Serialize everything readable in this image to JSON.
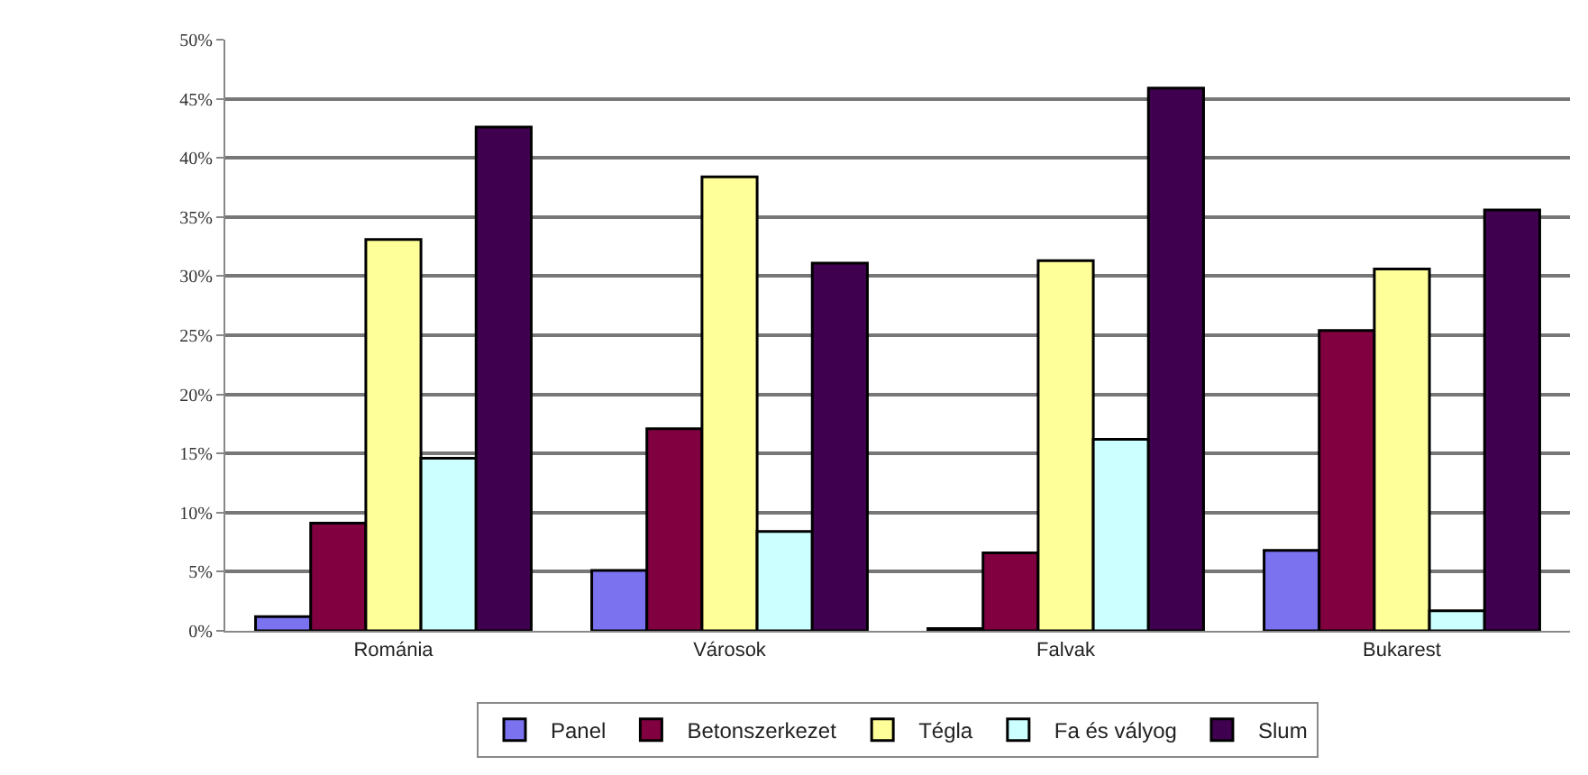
{
  "chart_data": {
    "type": "bar",
    "categories": [
      "Románia",
      "Városok",
      "Falvak",
      "Bukarest"
    ],
    "series": [
      {
        "name": "Panel",
        "color": "#7b72f0",
        "values": [
          1.2,
          5.1,
          0.2,
          6.8
        ]
      },
      {
        "name": "Betonszerkezet",
        "color": "#800040",
        "values": [
          9.1,
          17.1,
          6.6,
          25.4
        ]
      },
      {
        "name": "Tégla",
        "color": "#ffff99",
        "values": [
          33.1,
          38.4,
          31.3,
          30.6
        ]
      },
      {
        "name": "Fa és vályog",
        "color": "#ccffff",
        "values": [
          14.6,
          8.4,
          16.2,
          1.7
        ]
      },
      {
        "name": "Slum",
        "color": "#400050",
        "values": [
          42.6,
          31.1,
          45.9,
          35.6
        ]
      }
    ],
    "ylim": [
      0,
      50
    ],
    "yticks": [
      {
        "value": 0,
        "label": "0%"
      },
      {
        "value": 5,
        "label": "5%"
      },
      {
        "value": 10,
        "label": "10%"
      },
      {
        "value": 15,
        "label": "15%"
      },
      {
        "value": 20,
        "label": "20%"
      },
      {
        "value": 25,
        "label": "25%"
      },
      {
        "value": 30,
        "label": "30%"
      },
      {
        "value": 35,
        "label": "35%"
      },
      {
        "value": 40,
        "label": "40%"
      },
      {
        "value": 45,
        "label": "45%"
      },
      {
        "value": 50,
        "label": "50%"
      }
    ],
    "grid": "y",
    "legend": "bottom"
  }
}
